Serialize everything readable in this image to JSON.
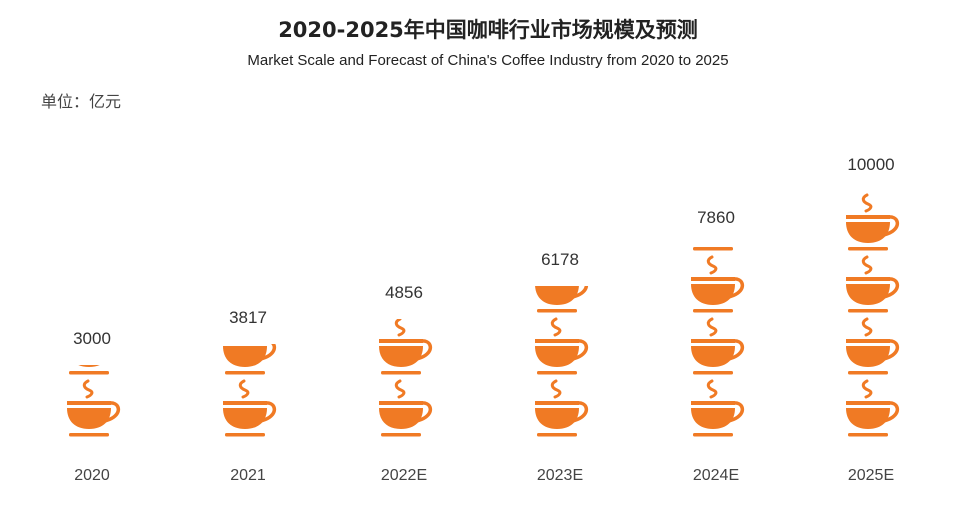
{
  "header": {
    "title": "2020-2025年中国咖啡行业市场规模及预测",
    "subtitle": "Market Scale and Forecast of China's Coffee Industry from 2020 to 2025",
    "unit": "单位：亿元"
  },
  "colors": {
    "cup": "#f07a24",
    "text": "#333333"
  },
  "icon": "coffee-cup-icon",
  "units_per_icon": 2500,
  "columns": [
    {
      "label": "2020",
      "value": "3000"
    },
    {
      "label": "2021",
      "value": "3817"
    },
    {
      "label": "2022E",
      "value": "4856"
    },
    {
      "label": "2023E",
      "value": "6178"
    },
    {
      "label": "2024E",
      "value": "7860"
    },
    {
      "label": "2025E",
      "value": "10000"
    }
  ],
  "chart_data": {
    "type": "bar",
    "subtype": "pictogram",
    "title": "2020-2025年中国咖啡行业市场规模及预测",
    "subtitle": "Market Scale and Forecast of China's Coffee Industry from 2020 to 2025",
    "categories": [
      "2020",
      "2021",
      "2022E",
      "2023E",
      "2024E",
      "2025E"
    ],
    "values": [
      3000,
      3817,
      4856,
      6178,
      7860,
      10000
    ],
    "xlabel": "",
    "ylabel": "单位：亿元",
    "units_per_icon": 2500,
    "grid": false,
    "legend": null
  }
}
